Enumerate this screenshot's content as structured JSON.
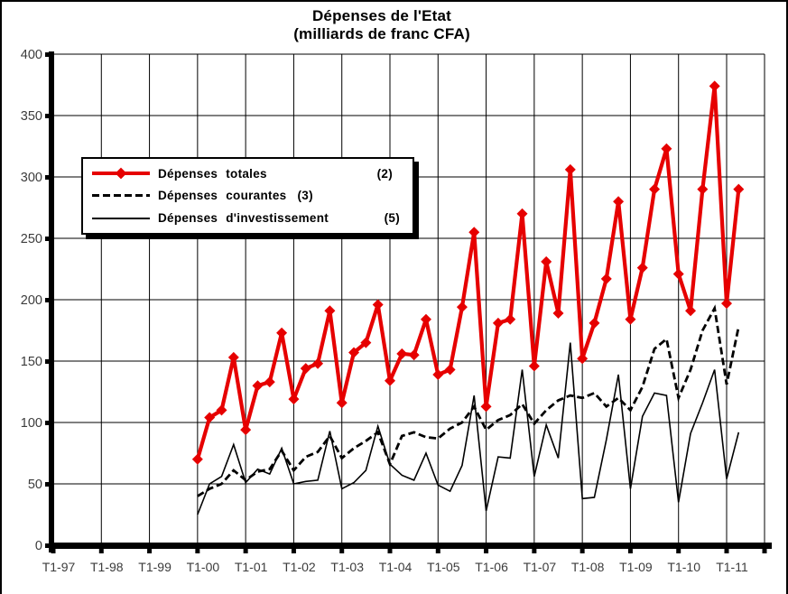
{
  "title": {
    "line1": "Dépenses de l'Etat",
    "line2": "(milliards de franc CFA)"
  },
  "legend": {
    "items": [
      {
        "label": "Dépenses  totales",
        "suffix": "(2)",
        "style": "red-diamond-line"
      },
      {
        "label": "Dépenses  courantes",
        "suffix": "(3)",
        "style": "black-dashed-line"
      },
      {
        "label": "Dépenses  d'investissement",
        "suffix": "(5)",
        "style": "black-solid-line"
      }
    ]
  },
  "colors": {
    "series_totales": "#e60000",
    "series_courantes": "#000000",
    "series_investissement": "#000000",
    "gridline": "#000000",
    "axis": "#000000",
    "tick_label": "#3c3c3c",
    "background": "#ffffff"
  },
  "chart_data": {
    "type": "line",
    "title": "Dépenses de l'Etat (milliards de franc CFA)",
    "xlabel": "",
    "ylabel": "",
    "ylim": [
      0,
      400
    ],
    "y_ticks": [
      400,
      350,
      300,
      250,
      200,
      150,
      100,
      50,
      0
    ],
    "x_tick_labels": [
      "T1-97",
      "T1-98",
      "T1-99",
      "T1-00",
      "T1-01",
      "T1-02",
      "T1-03",
      "T1-04",
      "T1-05",
      "T1-06",
      "T1-07",
      "T1-08",
      "T1-09",
      "T1-10",
      "T1-11"
    ],
    "grid": "on",
    "legend_position": "upper-left-inside",
    "frequency": "quarterly",
    "series_start_quarter": "T1-00",
    "quarters": [
      "T1-00",
      "T2-00",
      "T3-00",
      "T4-00",
      "T1-01",
      "T2-01",
      "T3-01",
      "T4-01",
      "T1-02",
      "T2-02",
      "T3-02",
      "T4-02",
      "T1-03",
      "T2-03",
      "T3-03",
      "T4-03",
      "T1-04",
      "T2-04",
      "T3-04",
      "T4-04",
      "T1-05",
      "T2-05",
      "T3-05",
      "T4-05",
      "T1-06",
      "T2-06",
      "T3-06",
      "T4-06",
      "T1-07",
      "T2-07",
      "T3-07",
      "T4-07",
      "T1-08",
      "T2-08",
      "T3-08",
      "T4-08",
      "T1-09",
      "T2-09",
      "T3-09",
      "T4-09",
      "T1-10",
      "T2-10",
      "T3-10",
      "T4-10",
      "T1-11",
      "T2-11"
    ],
    "series": [
      {
        "name": "Dépenses totales (2)",
        "marker": "diamond",
        "line": "solid-thick-red",
        "values": [
          70,
          104,
          110,
          153,
          94,
          130,
          133,
          173,
          119,
          144,
          148,
          191,
          116,
          157,
          165,
          196,
          134,
          156,
          155,
          184,
          139,
          143,
          194,
          255,
          113,
          181,
          184,
          270,
          146,
          231,
          189,
          306,
          152,
          181,
          217,
          280,
          184,
          226,
          290,
          323,
          221,
          191,
          290,
          374,
          197,
          290
        ]
      },
      {
        "name": "Dépenses courantes (3)",
        "marker": "none",
        "line": "dashed-black",
        "values": [
          40,
          46,
          50,
          61,
          53,
          60,
          62,
          77,
          61,
          72,
          76,
          89,
          71,
          79,
          85,
          92,
          66,
          89,
          92,
          88,
          87,
          95,
          100,
          113,
          94,
          102,
          106,
          115,
          99,
          110,
          118,
          122,
          120,
          124,
          113,
          120,
          110,
          129,
          160,
          168,
          120,
          143,
          175,
          193,
          131,
          178
        ]
      },
      {
        "name": "Dépenses d'investissement (5)",
        "marker": "none",
        "line": "thin-solid-black",
        "values": [
          25,
          50,
          56,
          82,
          51,
          62,
          58,
          79,
          50,
          52,
          53,
          93,
          46,
          51,
          61,
          97,
          66,
          57,
          53,
          75,
          49,
          44,
          65,
          122,
          28,
          72,
          71,
          143,
          56,
          98,
          71,
          165,
          38,
          39,
          86,
          139,
          46,
          105,
          124,
          122,
          35,
          91,
          116,
          143,
          54,
          92
        ]
      }
    ]
  }
}
